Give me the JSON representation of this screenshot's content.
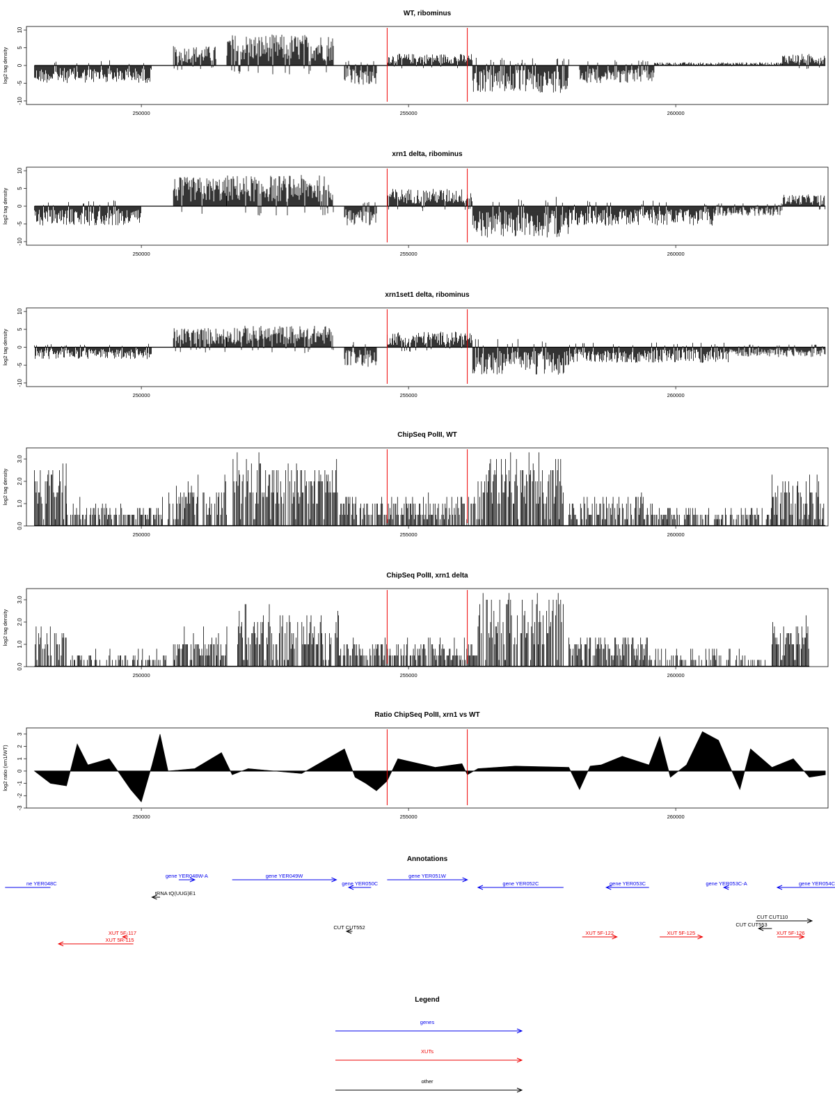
{
  "chart_data": [
    {
      "type": "bar",
      "title": "WT, ribominus",
      "ylabel": "log2 tag density",
      "ylim": [
        -11,
        11
      ],
      "yticks": [
        "-10",
        "-5",
        "0",
        "5",
        "10"
      ],
      "xlim": [
        247850,
        262850
      ],
      "xticks": [
        "250000",
        "255000",
        "260000"
      ],
      "red_markers": [
        254600,
        256100
      ],
      "regions": [
        {
          "from": 248000,
          "to": 250200,
          "value": -4.5
        },
        {
          "from": 250600,
          "to": 251400,
          "value": 5
        },
        {
          "from": 251600,
          "to": 253600,
          "value": 8
        },
        {
          "from": 253800,
          "to": 254400,
          "value": -5
        },
        {
          "from": 254600,
          "to": 256200,
          "value": 3
        },
        {
          "from": 256200,
          "to": 258000,
          "value": -7
        },
        {
          "from": 258200,
          "to": 259600,
          "value": -4.5
        },
        {
          "from": 259600,
          "to": 262000,
          "value": 0.8
        },
        {
          "from": 262000,
          "to": 262800,
          "value": 3
        }
      ]
    },
    {
      "type": "bar",
      "title": "xrn1 delta, ribominus",
      "ylabel": "log2 tag density",
      "ylim": [
        -11,
        11
      ],
      "yticks": [
        "-10",
        "-5",
        "0",
        "5",
        "10"
      ],
      "xlim": [
        247850,
        262850
      ],
      "xticks": [
        "250000",
        "255000",
        "260000"
      ],
      "red_markers": [
        254600,
        256100
      ],
      "regions": [
        {
          "from": 248000,
          "to": 250000,
          "value": -5
        },
        {
          "from": 250600,
          "to": 251600,
          "value": 7.5
        },
        {
          "from": 251600,
          "to": 253600,
          "value": 8
        },
        {
          "from": 253800,
          "to": 254400,
          "value": -5
        },
        {
          "from": 254600,
          "to": 256200,
          "value": 4.5
        },
        {
          "from": 256200,
          "to": 258000,
          "value": -8
        },
        {
          "from": 258000,
          "to": 260700,
          "value": -5
        },
        {
          "from": 260700,
          "to": 262000,
          "value": -2.5
        },
        {
          "from": 262000,
          "to": 262800,
          "value": 3
        }
      ]
    },
    {
      "type": "bar",
      "title": "xrn1set1 delta, ribominus",
      "ylabel": "log2 tag density",
      "ylim": [
        -11,
        11
      ],
      "yticks": [
        "-10",
        "-5",
        "0",
        "5",
        "10"
      ],
      "xlim": [
        247850,
        262850
      ],
      "xticks": [
        "250000",
        "255000",
        "260000"
      ],
      "red_markers": [
        254600,
        256100
      ],
      "regions": [
        {
          "from": 248000,
          "to": 250200,
          "value": -3
        },
        {
          "from": 250600,
          "to": 251600,
          "value": 5
        },
        {
          "from": 251600,
          "to": 253600,
          "value": 5.5
        },
        {
          "from": 253800,
          "to": 254400,
          "value": -5
        },
        {
          "from": 254600,
          "to": 256200,
          "value": 4
        },
        {
          "from": 256200,
          "to": 258000,
          "value": -7
        },
        {
          "from": 258000,
          "to": 261000,
          "value": -4
        },
        {
          "from": 261000,
          "to": 262800,
          "value": -2.5
        }
      ]
    },
    {
      "type": "bar",
      "title": "ChipSeq PolII, WT",
      "ylabel": "log2 tag density",
      "ylim": [
        0,
        3.5
      ],
      "yticks": [
        "0.0",
        "1.0",
        "2.0",
        "3.0"
      ],
      "xlim": [
        247850,
        262850
      ],
      "xticks": [
        "250000",
        "255000",
        "260000"
      ],
      "red_markers": [
        254600,
        256100
      ],
      "regions": [
        {
          "from": 248000,
          "to": 248600,
          "value": 2.5
        },
        {
          "from": 248600,
          "to": 250400,
          "value": 0.8
        },
        {
          "from": 250500,
          "to": 251600,
          "value": 1.8
        },
        {
          "from": 251700,
          "to": 253700,
          "value": 2.8
        },
        {
          "from": 253700,
          "to": 256300,
          "value": 1.2
        },
        {
          "from": 256300,
          "to": 257900,
          "value": 2.8
        },
        {
          "from": 258000,
          "to": 259600,
          "value": 1.2
        },
        {
          "from": 259600,
          "to": 261800,
          "value": 0.5
        },
        {
          "from": 261800,
          "to": 262800,
          "value": 2
        }
      ]
    },
    {
      "type": "bar",
      "title": "ChipSeq PolII, xrn1 delta",
      "ylabel": "log2 tag density",
      "ylim": [
        0,
        3.5
      ],
      "yticks": [
        "0.0",
        "1.0",
        "2.0",
        "3.0"
      ],
      "xlim": [
        247850,
        262850
      ],
      "xticks": [
        "250000",
        "255000",
        "260000"
      ],
      "red_markers": [
        254600,
        256100
      ],
      "regions": [
        {
          "from": 248000,
          "to": 248600,
          "value": 1.6
        },
        {
          "from": 248600,
          "to": 250500,
          "value": 0.3
        },
        {
          "from": 250600,
          "to": 251600,
          "value": 1.3
        },
        {
          "from": 251800,
          "to": 253700,
          "value": 2.3
        },
        {
          "from": 253700,
          "to": 256300,
          "value": 1.0
        },
        {
          "from": 256300,
          "to": 257900,
          "value": 3.0
        },
        {
          "from": 258000,
          "to": 259500,
          "value": 1.2
        },
        {
          "from": 259500,
          "to": 261700,
          "value": 0.3
        },
        {
          "from": 261800,
          "to": 262500,
          "value": 1.7
        }
      ]
    },
    {
      "type": "area",
      "title": "Ratio ChipSeq PolII, xrn1 vs WT",
      "ylabel": "log2 ratio (xrn1/WT)",
      "ylim": [
        -3,
        3.5
      ],
      "yticks": [
        "-3",
        "-2",
        "-1",
        "0",
        "1",
        "2",
        "3"
      ],
      "xlim": [
        247850,
        262850
      ],
      "xticks": [
        "250000",
        "255000",
        "260000"
      ],
      "red_markers": [
        254600,
        256100
      ],
      "series": [
        {
          "x": [
            248000,
            248300,
            248600,
            248800,
            249000,
            249400,
            249800,
            250000,
            250200,
            250350,
            250500,
            251000,
            251500,
            251700,
            252000,
            253000,
            253800,
            254000,
            254200,
            254400,
            254600,
            254800,
            255000,
            255500,
            256000,
            256100,
            256300,
            257000,
            258000,
            258200,
            258400,
            258600,
            259000,
            259500,
            259700,
            259900,
            260200,
            260500,
            260800,
            261000,
            261200,
            261400,
            261800,
            262200,
            262500,
            262800
          ],
          "y": [
            0,
            -1,
            -1.2,
            2.2,
            0.5,
            1.0,
            -1.5,
            -2.5,
            0.5,
            3.0,
            0,
            0.2,
            1.5,
            -0.3,
            0.2,
            -0.2,
            1.8,
            -0.5,
            -1.0,
            -1.6,
            -0.8,
            1.0,
            0.8,
            0.3,
            0.6,
            -0.3,
            0.2,
            0.4,
            0.3,
            -1.5,
            0.4,
            0.5,
            1.2,
            0.5,
            2.8,
            -0.5,
            0.5,
            3.2,
            2.5,
            0.5,
            -1.5,
            1.8,
            0.3,
            1.0,
            -0.5,
            -0.3
          ]
        }
      ]
    }
  ],
  "annotations": {
    "title": "Annotations",
    "features": [
      {
        "label": "ne YER048C",
        "kind": "gene",
        "from": 247450,
        "to": 248300,
        "dir": "none",
        "row": 1
      },
      {
        "label": "gene YER048W-A",
        "kind": "gene",
        "from": 250700,
        "to": 251000,
        "dir": "right",
        "row": 0
      },
      {
        "label": "tRNA tQ(UUG)E1",
        "kind": "other",
        "from": 250200,
        "to": 250350,
        "dir": "left",
        "row": 2
      },
      {
        "label": "gene YER049W",
        "kind": "gene",
        "from": 251700,
        "to": 253650,
        "dir": "right",
        "row": 0
      },
      {
        "label": "gene YER050C",
        "kind": "gene",
        "from": 253880,
        "to": 254300,
        "dir": "left",
        "row": 1
      },
      {
        "label": "gene YER051W",
        "kind": "gene",
        "from": 254600,
        "to": 256100,
        "dir": "right",
        "row": 0
      },
      {
        "label": "gene YER052C",
        "kind": "gene",
        "from": 256300,
        "to": 257900,
        "dir": "left",
        "row": 1
      },
      {
        "label": "gene YER053C",
        "kind": "gene",
        "from": 258700,
        "to": 259500,
        "dir": "left",
        "row": 1
      },
      {
        "label": "gene YER053C-A",
        "kind": "gene",
        "from": 260900,
        "to": 261000,
        "dir": "left",
        "row": 1
      },
      {
        "label": "gene YER054C",
        "kind": "gene",
        "from": 261900,
        "to": 263500,
        "dir": "left",
        "row": 1
      },
      {
        "label": "CUT CUT552",
        "kind": "other",
        "from": 253840,
        "to": 253950,
        "dir": "left",
        "row": 3
      },
      {
        "label": "CUT CUT110",
        "kind": "other",
        "from": 261500,
        "to": 262550,
        "dir": "right",
        "row": 4
      },
      {
        "label": "CUT CUT553",
        "kind": "other",
        "from": 261550,
        "to": 261800,
        "dir": "left",
        "row": 5
      },
      {
        "label": "XUT 5F-117",
        "kind": "xut",
        "from": 249650,
        "to": 249750,
        "dir": "left",
        "row": 6
      },
      {
        "label": "XUT 5R-115",
        "kind": "xut",
        "from": 248450,
        "to": 249850,
        "dir": "left",
        "row": 7
      },
      {
        "label": "XUT 5F-122",
        "kind": "xut",
        "from": 258250,
        "to": 258900,
        "dir": "right",
        "row": 6
      },
      {
        "label": "XUT 5F-125",
        "kind": "xut",
        "from": 259700,
        "to": 260500,
        "dir": "right",
        "row": 6
      },
      {
        "label": "XUT 5F-126",
        "kind": "xut",
        "from": 261900,
        "to": 262400,
        "dir": "right",
        "row": 6
      }
    ]
  },
  "legend": {
    "title": "Legend",
    "items": [
      {
        "label": "genes",
        "kind": "gene"
      },
      {
        "label": "XUTs",
        "kind": "xut"
      },
      {
        "label": "other",
        "kind": "other"
      }
    ]
  },
  "colors": {
    "gene": "#0000ee",
    "xut": "#ee0000",
    "other": "#000000",
    "marker": "#ee0000",
    "bars": "#000000"
  }
}
